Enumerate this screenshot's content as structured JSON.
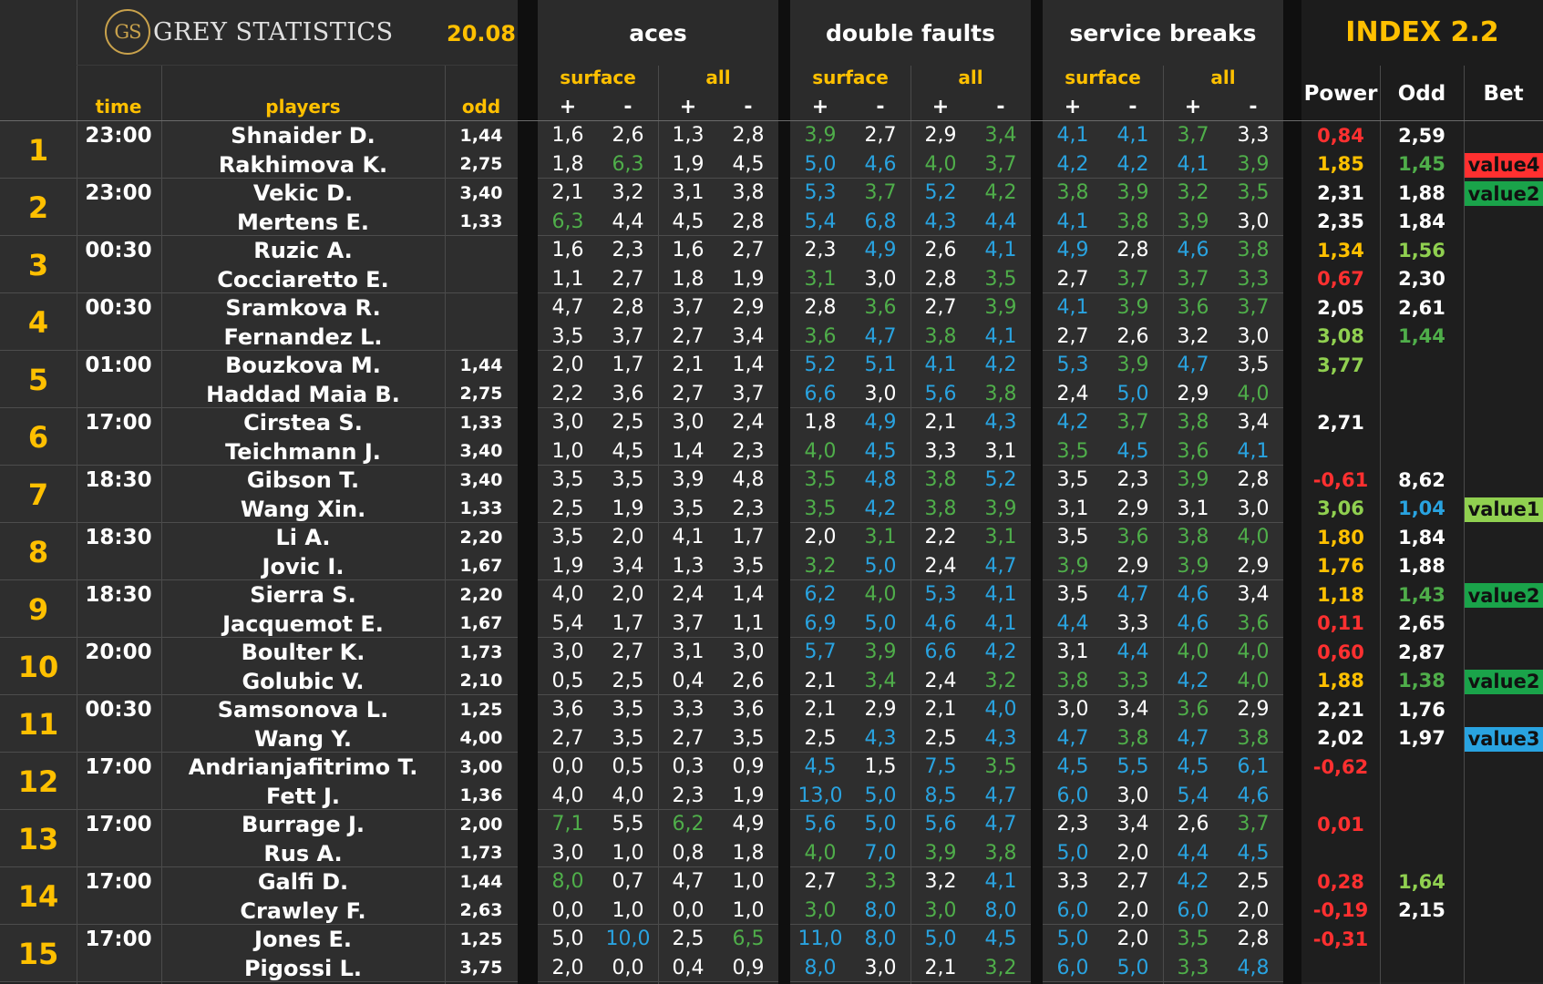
{
  "header": {
    "brand": "GREY STATISTICS",
    "logo": "GS",
    "date": "20.08",
    "index": "INDEX 2.2",
    "groups": [
      "aces",
      "double faults",
      "service breaks"
    ],
    "sub": [
      "surface",
      "all"
    ],
    "plus": "+",
    "minus": "-",
    "time": "time",
    "players": "players",
    "odd": "odd",
    "power": "Power",
    "odd2": "Odd",
    "bet": "Bet"
  },
  "colors": {
    "white": "#ffffff",
    "green": "#4fae4a",
    "blue": "#29a3e0",
    "red": "#ff3030",
    "yellow": "#ffc000",
    "lightgreen": "#90d050"
  },
  "matches": [
    {
      "n": "1",
      "time": "23:00",
      "rows": [
        {
          "player": "Shnaider D.",
          "odd": "1,44",
          "stats": [
            "1,6",
            "2,6",
            "1,3",
            "2,8",
            "3,9",
            "2,7",
            "2,9",
            "3,4",
            "4,1",
            "4,1",
            "3,7",
            "3,3"
          ],
          "sc": "wwwwgwwgbbgw",
          "power": "0,84",
          "pc": "r",
          "odd2": "2,59",
          "oc": "w",
          "bet": "",
          "betc": ""
        },
        {
          "player": "Rakhimova K.",
          "odd": "2,75",
          "stats": [
            "1,8",
            "6,3",
            "1,9",
            "4,5",
            "5,0",
            "4,6",
            "4,0",
            "3,7",
            "4,2",
            "4,2",
            "4,1",
            "3,9"
          ],
          "sc": "wgwwbbggbbbg",
          "power": "1,85",
          "pc": "y",
          "odd2": "1,45",
          "oc": "g",
          "bet": "value4",
          "betc": "red"
        }
      ]
    },
    {
      "n": "2",
      "time": "23:00",
      "rows": [
        {
          "player": "Vekic D.",
          "odd": "3,40",
          "stats": [
            "2,1",
            "3,2",
            "3,1",
            "3,8",
            "5,3",
            "3,7",
            "5,2",
            "4,2",
            "3,8",
            "3,9",
            "3,2",
            "3,5"
          ],
          "sc": "wwwwbgbggggg",
          "power": "2,31",
          "pc": "w",
          "odd2": "1,88",
          "oc": "w",
          "bet": "value2",
          "betc": "green"
        },
        {
          "player": "Mertens E.",
          "odd": "1,33",
          "stats": [
            "6,3",
            "4,4",
            "4,5",
            "2,8",
            "5,4",
            "6,8",
            "4,3",
            "4,4",
            "4,1",
            "3,8",
            "3,9",
            "3,0"
          ],
          "sc": "gwwwbbbbbggw",
          "power": "2,35",
          "pc": "w",
          "odd2": "1,84",
          "oc": "w",
          "bet": "",
          "betc": ""
        }
      ]
    },
    {
      "n": "3",
      "time": "00:30",
      "rows": [
        {
          "player": "Ruzic A.",
          "odd": "",
          "stats": [
            "1,6",
            "2,3",
            "1,6",
            "2,7",
            "2,3",
            "4,9",
            "2,6",
            "4,1",
            "4,9",
            "2,8",
            "4,6",
            "3,8"
          ],
          "sc": "wwwwwbwbbwbg",
          "power": "1,34",
          "pc": "y",
          "odd2": "1,56",
          "oc": "l",
          "bet": "",
          "betc": ""
        },
        {
          "player": "Cocciaretto E.",
          "odd": "",
          "stats": [
            "1,1",
            "2,7",
            "1,8",
            "1,9",
            "3,1",
            "3,0",
            "2,8",
            "3,5",
            "2,7",
            "3,7",
            "3,7",
            "3,3"
          ],
          "sc": "wwwwgwwgwggg",
          "power": "0,67",
          "pc": "r",
          "odd2": "2,30",
          "oc": "w",
          "bet": "",
          "betc": ""
        }
      ]
    },
    {
      "n": "4",
      "time": "00:30",
      "rows": [
        {
          "player": "Sramkova R.",
          "odd": "",
          "stats": [
            "4,7",
            "2,8",
            "3,7",
            "2,9",
            "2,8",
            "3,6",
            "2,7",
            "3,9",
            "4,1",
            "3,9",
            "3,6",
            "3,7"
          ],
          "sc": "wwwwwgwgbggg",
          "power": "2,05",
          "pc": "w",
          "odd2": "2,61",
          "oc": "w",
          "bet": "",
          "betc": ""
        },
        {
          "player": "Fernandez L.",
          "odd": "",
          "stats": [
            "3,5",
            "3,7",
            "2,7",
            "3,4",
            "3,6",
            "4,7",
            "3,8",
            "4,1",
            "2,7",
            "2,6",
            "3,2",
            "3,0"
          ],
          "sc": "wwwwgbgbwwww",
          "power": "3,08",
          "pc": "l",
          "odd2": "1,44",
          "oc": "g",
          "bet": "",
          "betc": ""
        }
      ]
    },
    {
      "n": "5",
      "time": "01:00",
      "rows": [
        {
          "player": "Bouzkova M.",
          "odd": "1,44",
          "stats": [
            "2,0",
            "1,7",
            "2,1",
            "1,4",
            "5,2",
            "5,1",
            "4,1",
            "4,2",
            "5,3",
            "3,9",
            "4,7",
            "3,5"
          ],
          "sc": "wwwwbbbbbgbw",
          "power": "3,77",
          "pc": "l",
          "odd2": "",
          "oc": "w",
          "bet": "",
          "betc": ""
        },
        {
          "player": "Haddad Maia B.",
          "odd": "2,75",
          "stats": [
            "2,2",
            "3,6",
            "2,7",
            "3,7",
            "6,6",
            "3,0",
            "5,6",
            "3,8",
            "2,4",
            "5,0",
            "2,9",
            "4,0"
          ],
          "sc": "wwwwbwbgwbwg",
          "power": "",
          "pc": "w",
          "odd2": "",
          "oc": "w",
          "bet": "",
          "betc": ""
        }
      ]
    },
    {
      "n": "6",
      "time": "17:00",
      "rows": [
        {
          "player": "Cirstea S.",
          "odd": "1,33",
          "stats": [
            "3,0",
            "2,5",
            "3,0",
            "2,4",
            "1,8",
            "4,9",
            "2,1",
            "4,3",
            "4,2",
            "3,7",
            "3,8",
            "3,4"
          ],
          "sc": "wwwwwbwbbggw",
          "power": "2,71",
          "pc": "w",
          "odd2": "",
          "oc": "w",
          "bet": "",
          "betc": ""
        },
        {
          "player": "Teichmann J.",
          "odd": "3,40",
          "stats": [
            "1,0",
            "4,5",
            "1,4",
            "2,3",
            "4,0",
            "4,5",
            "3,3",
            "3,1",
            "3,5",
            "4,5",
            "3,6",
            "4,1"
          ],
          "sc": "wwwwgbwwgbgb",
          "power": "",
          "pc": "w",
          "odd2": "",
          "oc": "w",
          "bet": "",
          "betc": ""
        }
      ]
    },
    {
      "n": "7",
      "time": "18:30",
      "rows": [
        {
          "player": "Gibson T.",
          "odd": "3,40",
          "stats": [
            "3,5",
            "3,5",
            "3,9",
            "4,8",
            "3,5",
            "4,8",
            "3,8",
            "5,2",
            "3,5",
            "2,3",
            "3,9",
            "2,8"
          ],
          "sc": "wwwwgbgbwwgw",
          "power": "-0,61",
          "pc": "r",
          "odd2": "8,62",
          "oc": "w",
          "bet": "",
          "betc": ""
        },
        {
          "player": "Wang Xin.",
          "odd": "1,33",
          "stats": [
            "2,5",
            "1,9",
            "3,5",
            "2,3",
            "3,5",
            "4,2",
            "3,8",
            "3,9",
            "3,1",
            "2,9",
            "3,1",
            "3,0"
          ],
          "sc": "wwwwgbggwwww",
          "power": "3,06",
          "pc": "l",
          "odd2": "1,04",
          "oc": "b",
          "bet": "value1",
          "betc": "lightgreen"
        }
      ]
    },
    {
      "n": "8",
      "time": "18:30",
      "rows": [
        {
          "player": "Li A.",
          "odd": "2,20",
          "stats": [
            "3,5",
            "2,0",
            "4,1",
            "1,7",
            "2,0",
            "3,1",
            "2,2",
            "3,1",
            "3,5",
            "3,6",
            "3,8",
            "4,0"
          ],
          "sc": "wwwwwgwgwggg",
          "power": "1,80",
          "pc": "y",
          "odd2": "1,84",
          "oc": "w",
          "bet": "",
          "betc": ""
        },
        {
          "player": "Jovic I.",
          "odd": "1,67",
          "stats": [
            "1,9",
            "3,4",
            "1,3",
            "3,5",
            "3,2",
            "5,0",
            "2,4",
            "4,7",
            "3,9",
            "2,9",
            "3,9",
            "2,9"
          ],
          "sc": "wwwwgbwbgwgw",
          "power": "1,76",
          "pc": "y",
          "odd2": "1,88",
          "oc": "w",
          "bet": "",
          "betc": ""
        }
      ]
    },
    {
      "n": "9",
      "time": "18:30",
      "rows": [
        {
          "player": "Sierra S.",
          "odd": "2,20",
          "stats": [
            "4,0",
            "2,0",
            "2,4",
            "1,4",
            "6,2",
            "4,0",
            "5,3",
            "4,1",
            "3,5",
            "4,7",
            "4,6",
            "3,4"
          ],
          "sc": "wwwwbgbbwbbw",
          "power": "1,18",
          "pc": "y",
          "odd2": "1,43",
          "oc": "g",
          "bet": "value2",
          "betc": "green"
        },
        {
          "player": "Jacquemot E.",
          "odd": "1,67",
          "stats": [
            "5,4",
            "1,7",
            "3,7",
            "1,1",
            "6,9",
            "5,0",
            "4,6",
            "4,1",
            "4,4",
            "3,3",
            "4,6",
            "3,6"
          ],
          "sc": "wwwwbbbbbwbg",
          "power": "0,11",
          "pc": "r",
          "odd2": "2,65",
          "oc": "w",
          "bet": "",
          "betc": ""
        }
      ]
    },
    {
      "n": "10",
      "time": "20:00",
      "rows": [
        {
          "player": "Boulter K.",
          "odd": "1,73",
          "stats": [
            "3,0",
            "2,7",
            "3,1",
            "3,0",
            "5,7",
            "3,9",
            "6,6",
            "4,2",
            "3,1",
            "4,4",
            "4,0",
            "4,0"
          ],
          "sc": "wwwwbgbbwbgg",
          "power": "0,60",
          "pc": "r",
          "odd2": "2,87",
          "oc": "w",
          "bet": "",
          "betc": ""
        },
        {
          "player": "Golubic V.",
          "odd": "2,10",
          "stats": [
            "0,5",
            "2,5",
            "0,4",
            "2,6",
            "2,1",
            "3,4",
            "2,4",
            "3,2",
            "3,8",
            "3,3",
            "4,2",
            "4,0"
          ],
          "sc": "wwwwwgwgggbg",
          "power": "1,88",
          "pc": "y",
          "odd2": "1,38",
          "oc": "g",
          "bet": "value2",
          "betc": "green"
        }
      ]
    },
    {
      "n": "11",
      "time": "00:30",
      "rows": [
        {
          "player": "Samsonova L.",
          "odd": "1,25",
          "stats": [
            "3,6",
            "3,5",
            "3,3",
            "3,6",
            "2,1",
            "2,9",
            "2,1",
            "4,0",
            "3,0",
            "3,4",
            "3,6",
            "2,9"
          ],
          "sc": "wwwwwwwbwwgw",
          "power": "2,21",
          "pc": "w",
          "odd2": "1,76",
          "oc": "w",
          "bet": "",
          "betc": ""
        },
        {
          "player": "Wang Y.",
          "odd": "4,00",
          "stats": [
            "2,7",
            "3,5",
            "2,7",
            "3,5",
            "2,5",
            "4,3",
            "2,5",
            "4,3",
            "4,7",
            "3,8",
            "4,7",
            "3,8"
          ],
          "sc": "wwwwwbwbbgbg",
          "power": "2,02",
          "pc": "w",
          "odd2": "1,97",
          "oc": "w",
          "bet": "value3",
          "betc": "blue"
        }
      ]
    },
    {
      "n": "12",
      "time": "17:00",
      "rows": [
        {
          "player": "Andrianjafitrimo T.",
          "odd": "3,00",
          "stats": [
            "0,0",
            "0,5",
            "0,3",
            "0,9",
            "4,5",
            "1,5",
            "7,5",
            "3,5",
            "4,5",
            "5,5",
            "4,5",
            "6,1"
          ],
          "sc": "wwwwbwbgbbbb",
          "power": "-0,62",
          "pc": "r",
          "odd2": "",
          "oc": "w",
          "bet": "",
          "betc": ""
        },
        {
          "player": "Fett J.",
          "odd": "1,36",
          "stats": [
            "4,0",
            "4,0",
            "2,3",
            "1,9",
            "13,0",
            "5,0",
            "8,5",
            "4,7",
            "6,0",
            "3,0",
            "5,4",
            "4,6"
          ],
          "sc": "wwwwbbbbbwbb",
          "power": "",
          "pc": "w",
          "odd2": "",
          "oc": "w",
          "bet": "",
          "betc": ""
        }
      ]
    },
    {
      "n": "13",
      "time": "17:00",
      "rows": [
        {
          "player": "Burrage J.",
          "odd": "2,00",
          "stats": [
            "7,1",
            "5,5",
            "6,2",
            "4,9",
            "5,6",
            "5,0",
            "5,6",
            "4,7",
            "2,3",
            "3,4",
            "2,6",
            "3,7"
          ],
          "sc": "gwgwbbbbwwwg",
          "power": "0,01",
          "pc": "r",
          "odd2": "",
          "oc": "w",
          "bet": "",
          "betc": ""
        },
        {
          "player": "Rus A.",
          "odd": "1,73",
          "stats": [
            "3,0",
            "1,0",
            "0,8",
            "1,8",
            "4,0",
            "7,0",
            "3,9",
            "3,8",
            "5,0",
            "2,0",
            "4,4",
            "4,5"
          ],
          "sc": "wwwwgbggbwbb",
          "power": "",
          "pc": "w",
          "odd2": "",
          "oc": "w",
          "bet": "",
          "betc": ""
        }
      ]
    },
    {
      "n": "14",
      "time": "17:00",
      "rows": [
        {
          "player": "Galfi D.",
          "odd": "1,44",
          "stats": [
            "8,0",
            "0,7",
            "4,7",
            "1,0",
            "2,7",
            "3,3",
            "3,2",
            "4,1",
            "3,3",
            "2,7",
            "4,2",
            "2,5"
          ],
          "sc": "gwwwwgwbwwbw",
          "power": "0,28",
          "pc": "r",
          "odd2": "1,64",
          "oc": "l",
          "bet": "",
          "betc": ""
        },
        {
          "player": "Crawley F.",
          "odd": "2,63",
          "stats": [
            "0,0",
            "1,0",
            "0,0",
            "1,0",
            "3,0",
            "8,0",
            "3,0",
            "8,0",
            "6,0",
            "2,0",
            "6,0",
            "2,0"
          ],
          "sc": "wwwwgbgbbwbw",
          "power": "-0,19",
          "pc": "r",
          "odd2": "2,15",
          "oc": "w",
          "bet": "",
          "betc": ""
        }
      ]
    },
    {
      "n": "15",
      "time": "17:00",
      "rows": [
        {
          "player": "Jones E.",
          "odd": "1,25",
          "stats": [
            "5,0",
            "10,0",
            "2,5",
            "6,5",
            "11,0",
            "8,0",
            "5,0",
            "4,5",
            "5,0",
            "2,0",
            "3,5",
            "2,8"
          ],
          "sc": "wbwgbbbbbwgw",
          "power": "-0,31",
          "pc": "r",
          "odd2": "",
          "oc": "w",
          "bet": "",
          "betc": ""
        },
        {
          "player": "Pigossi L.",
          "odd": "3,75",
          "stats": [
            "2,0",
            "0,0",
            "0,4",
            "0,9",
            "8,0",
            "3,0",
            "2,1",
            "3,2",
            "6,0",
            "5,0",
            "3,3",
            "4,8"
          ],
          "sc": "wwwwbwwgbbgb",
          "power": "",
          "pc": "w",
          "odd2": "",
          "oc": "w",
          "bet": "",
          "betc": ""
        }
      ]
    }
  ]
}
